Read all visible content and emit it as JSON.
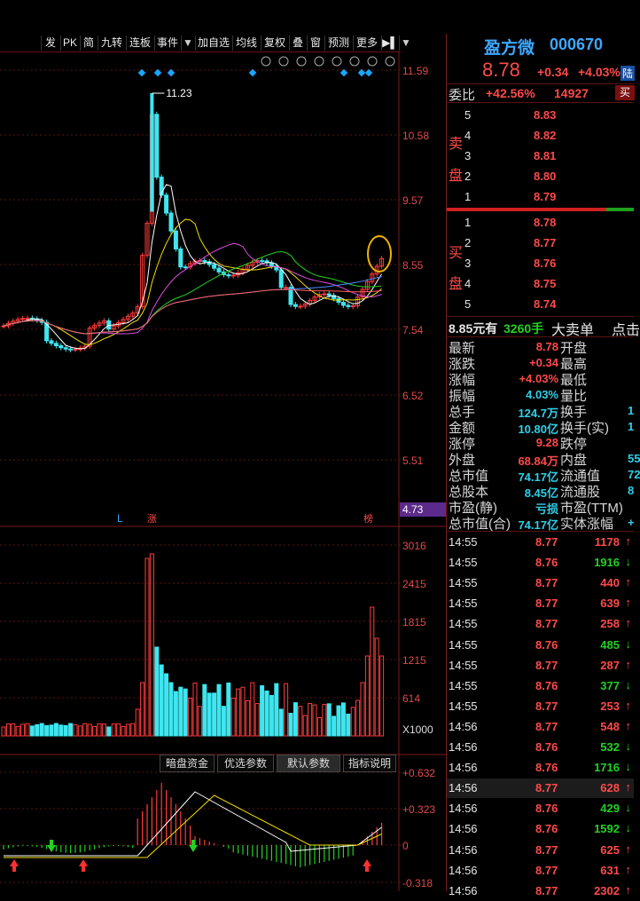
{
  "toolbar": {
    "items": [
      "发",
      "PK",
      "简",
      "九转",
      "连板",
      "事件",
      "▼",
      "加自选",
      "均线",
      "复权",
      "叠",
      "窗",
      "预测",
      "更多",
      "▶▌",
      "▼"
    ]
  },
  "chart_icons": [
    "gear-icon",
    "pen-icon",
    "eye-icon",
    "magnet-icon",
    "hand-icon",
    "lock-icon",
    "zoom-in-icon",
    "zoom-out-icon"
  ],
  "main_axis": {
    "ticks": [
      "11.59",
      "10.58",
      "9.57",
      "8.55",
      "7.54",
      "6.52",
      "5.51"
    ],
    "low_label": "4.73",
    "peak_label": "11.23",
    "marker_L": "L",
    "marker_zhang": "涨",
    "marker_bang": "榜"
  },
  "vol_axis": {
    "ticks": [
      "3016",
      "2415",
      "1815",
      "1215",
      "614"
    ],
    "unit": "X1000"
  },
  "macd_axis": {
    "ticks": [
      "+0.632",
      "+0.323",
      "0",
      "-0.318"
    ]
  },
  "macd_tabs": [
    "暗盘资金",
    "优选参数",
    "默认参数",
    "指标说明"
  ],
  "quote": {
    "name": "盈方微",
    "code": "000670",
    "price": "8.78",
    "change": "+0.34",
    "change_pct": "+4.03%",
    "market_tag": "陆",
    "weibi_label": "委比",
    "weibi": "+42.56%",
    "weicha": "14927",
    "sell_btn": "买"
  },
  "orderbook": {
    "sell_label": [
      "卖",
      "盘"
    ],
    "buy_label": [
      "买",
      "盘"
    ],
    "sells": [
      {
        "level": "5",
        "price": "8.83"
      },
      {
        "level": "4",
        "price": "8.82"
      },
      {
        "level": "3",
        "price": "8.81"
      },
      {
        "level": "2",
        "price": "8.80"
      },
      {
        "level": "1",
        "price": "8.79"
      }
    ],
    "buys": [
      {
        "level": "1",
        "price": "8.78"
      },
      {
        "level": "2",
        "price": "8.77"
      },
      {
        "level": "3",
        "price": "8.76"
      },
      {
        "level": "4",
        "price": "8.75"
      },
      {
        "level": "5",
        "price": "8.74"
      }
    ]
  },
  "bigorder": {
    "price": "8.85元有",
    "hands": "3260手",
    "label": "大卖单",
    "extra": "点击"
  },
  "stats": [
    {
      "l1": "最新",
      "v1": "8.78",
      "c1": "red",
      "l2": "开盘",
      "v2": ""
    },
    {
      "l1": "涨跌",
      "v1": "+0.34",
      "c1": "red",
      "l2": "最高",
      "v2": ""
    },
    {
      "l1": "涨幅",
      "v1": "+4.03%",
      "c1": "red",
      "l2": "最低",
      "v2": ""
    },
    {
      "l1": "振幅",
      "v1": "4.03%",
      "c1": "cyn",
      "l2": "量比",
      "v2": ""
    },
    {
      "l1": "总手",
      "v1": "124.7万",
      "c1": "cyn",
      "l2": "换手",
      "v2": "1"
    },
    {
      "l1": "金额",
      "v1": "10.80亿",
      "c1": "cyn",
      "l2": "换手(实)",
      "v2": "1"
    },
    {
      "l1": "涨停",
      "v1": "9.28",
      "c1": "red",
      "l2": "跌停",
      "v2": ""
    },
    {
      "l1": "外盘",
      "v1": "68.84万",
      "c1": "red",
      "l2": "内盘",
      "v2": "55"
    },
    {
      "l1": "总市值",
      "v1": "74.17亿",
      "c1": "cyn",
      "l2": "流通值",
      "v2": "72"
    },
    {
      "l1": "总股本",
      "v1": "8.45亿",
      "c1": "cyn",
      "l2": "流通股",
      "v2": "8"
    },
    {
      "l1": "市盈(静)",
      "v1": "亏损",
      "c1": "cyn",
      "l2": "市盈(TTM)",
      "v2": ""
    },
    {
      "l1": "总市值(合)",
      "v1": "74.17亿",
      "c1": "cyn",
      "l2": "实体涨幅",
      "v2": "+"
    }
  ],
  "ticks": [
    {
      "time": "14:55",
      "price": "8.77",
      "vol": "1178",
      "dir": "up"
    },
    {
      "time": "14:55",
      "price": "8.76",
      "vol": "1916",
      "dir": "down"
    },
    {
      "time": "14:55",
      "price": "8.77",
      "vol": "440",
      "dir": "up"
    },
    {
      "time": "14:55",
      "price": "8.77",
      "vol": "639",
      "dir": "up"
    },
    {
      "time": "14:55",
      "price": "8.77",
      "vol": "258",
      "dir": "up"
    },
    {
      "time": "14:55",
      "price": "8.76",
      "vol": "485",
      "dir": "down"
    },
    {
      "time": "14:55",
      "price": "8.77",
      "vol": "287",
      "dir": "up"
    },
    {
      "time": "14:55",
      "price": "8.76",
      "vol": "377",
      "dir": "down"
    },
    {
      "time": "14:55",
      "price": "8.77",
      "vol": "253",
      "dir": "up"
    },
    {
      "time": "14:56",
      "price": "8.77",
      "vol": "548",
      "dir": "up"
    },
    {
      "time": "14:56",
      "price": "8.76",
      "vol": "532",
      "dir": "down"
    },
    {
      "time": "14:56",
      "price": "8.76",
      "vol": "1716",
      "dir": "down"
    },
    {
      "time": "14:56",
      "price": "8.77",
      "vol": "628",
      "dir": "up"
    },
    {
      "time": "14:56",
      "price": "8.76",
      "vol": "429",
      "dir": "down"
    },
    {
      "time": "14:56",
      "price": "8.76",
      "vol": "1592",
      "dir": "down"
    },
    {
      "time": "14:56",
      "price": "8.77",
      "vol": "625",
      "dir": "up"
    },
    {
      "time": "14:56",
      "price": "8.77",
      "vol": "631",
      "dir": "up"
    },
    {
      "time": "14:56",
      "price": "8.77",
      "vol": "2302",
      "dir": "up"
    }
  ],
  "colors": {
    "up": "#ff3b3b",
    "down": "#3ee6f0",
    "ma5": "#ffffff",
    "ma10": "#f5e000",
    "ma20": "#e04ee0",
    "ma30": "#22d122",
    "ma60": "#4a8cff",
    "ma120": "#ff6060"
  }
}
